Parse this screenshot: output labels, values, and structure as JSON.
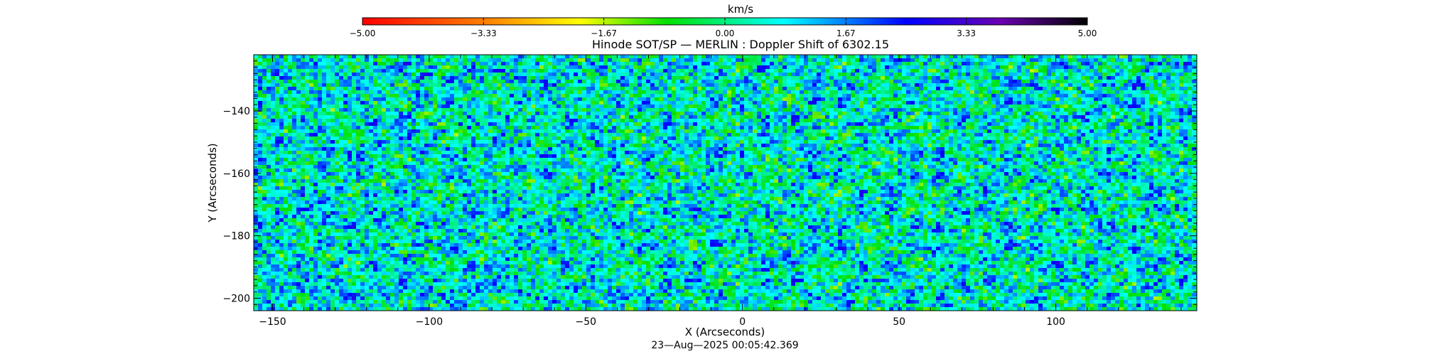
{
  "chart_data": {
    "type": "heatmap",
    "title": "Hinode SOT/SP — MERLIN : Doppler Shift of 6302.15",
    "xlabel": "X (Arcseconds)",
    "ylabel": "Y (Arcseconds)",
    "xlim": [
      -156,
      145
    ],
    "ylim": [
      -204,
      -122
    ],
    "x_ticks": [
      -150,
      -100,
      -50,
      0,
      50,
      100
    ],
    "x_tick_labels": [
      "−150",
      "−100",
      "−50",
      "0",
      "50",
      "100"
    ],
    "y_ticks": [
      -140,
      -160,
      -180,
      -200
    ],
    "y_tick_labels": [
      "−140",
      "−160",
      "−180",
      "−200"
    ],
    "colorbar": {
      "label": "km/s",
      "range": [
        -5.0,
        5.0
      ],
      "ticks": [
        -5.0,
        -3.33,
        -1.67,
        0.0,
        1.67,
        3.33,
        5.0
      ],
      "tick_labels": [
        "−5.00",
        "−3.33",
        "−1.67",
        "0.00",
        "1.67",
        "3.33",
        "5.00"
      ],
      "colors": [
        "#ff0000",
        "#ff8000",
        "#ffff00",
        "#00e000",
        "#00ffff",
        "#0000ff",
        "#6a00b0",
        "#000000"
      ]
    },
    "timestamp": "23—Aug—2025 00:05:42.369"
  }
}
